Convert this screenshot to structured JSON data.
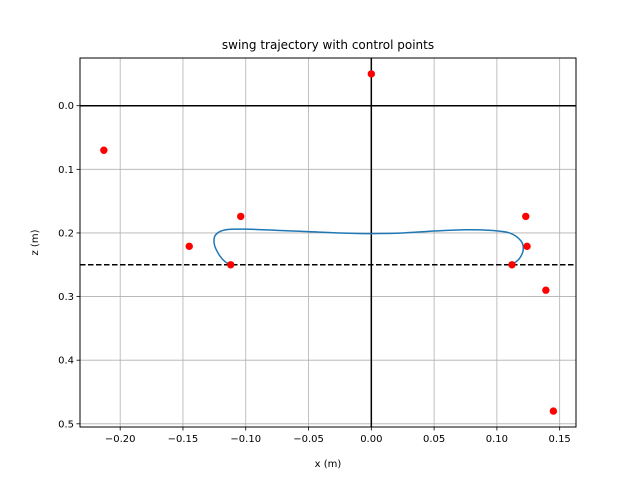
{
  "chart_data": {
    "type": "scatter",
    "title": "swing trajectory with control points",
    "xlabel": "x (m)",
    "ylabel": "z (m)",
    "xlim": [
      -0.232,
      0.163
    ],
    "ylim": [
      0.505,
      -0.075
    ],
    "y_inverted": true,
    "grid": true,
    "xticks": [
      -0.2,
      -0.15,
      -0.1,
      -0.05,
      0.0,
      0.05,
      0.1,
      0.15
    ],
    "xtick_labels": [
      "−0.20",
      "−0.15",
      "−0.10",
      "−0.05",
      "0.00",
      "0.05",
      "0.10",
      "0.15"
    ],
    "yticks": [
      0.0,
      0.1,
      0.2,
      0.3,
      0.4,
      0.5
    ],
    "ytick_labels": [
      "0.0",
      "0.1",
      "0.2",
      "0.3",
      "0.4",
      "0.5"
    ],
    "reference_lines": {
      "horizontal_solid_y": 0.0,
      "vertical_solid_x": 0.0,
      "horizontal_dashed_y": 0.25
    },
    "series": [
      {
        "kind": "control_points",
        "color": "#ff0000",
        "points": [
          {
            "x": 0.0,
            "y": -0.05
          },
          {
            "x": -0.213,
            "y": 0.07
          },
          {
            "x": -0.104,
            "y": 0.174
          },
          {
            "x": -0.145,
            "y": 0.221
          },
          {
            "x": -0.112,
            "y": 0.25
          },
          {
            "x": 0.123,
            "y": 0.174
          },
          {
            "x": 0.124,
            "y": 0.221
          },
          {
            "x": 0.112,
            "y": 0.25
          },
          {
            "x": 0.139,
            "y": 0.29
          },
          {
            "x": 0.145,
            "y": 0.48
          }
        ]
      },
      {
        "kind": "trajectory",
        "color": "#1f77b4",
        "points": [
          {
            "x": 0.112,
            "y": 0.25
          },
          {
            "x": 0.118,
            "y": 0.24
          },
          {
            "x": 0.121,
            "y": 0.226
          },
          {
            "x": 0.119,
            "y": 0.212
          },
          {
            "x": 0.11,
            "y": 0.2
          },
          {
            "x": 0.095,
            "y": 0.196
          },
          {
            "x": 0.075,
            "y": 0.195
          },
          {
            "x": 0.05,
            "y": 0.197
          },
          {
            "x": 0.025,
            "y": 0.2
          },
          {
            "x": 0.0,
            "y": 0.201
          },
          {
            "x": -0.025,
            "y": 0.2
          },
          {
            "x": -0.05,
            "y": 0.198
          },
          {
            "x": -0.075,
            "y": 0.196
          },
          {
            "x": -0.1,
            "y": 0.194
          },
          {
            "x": -0.116,
            "y": 0.195
          },
          {
            "x": -0.124,
            "y": 0.203
          },
          {
            "x": -0.125,
            "y": 0.218
          },
          {
            "x": -0.121,
            "y": 0.235
          },
          {
            "x": -0.116,
            "y": 0.246
          },
          {
            "x": -0.112,
            "y": 0.25
          }
        ]
      }
    ]
  }
}
